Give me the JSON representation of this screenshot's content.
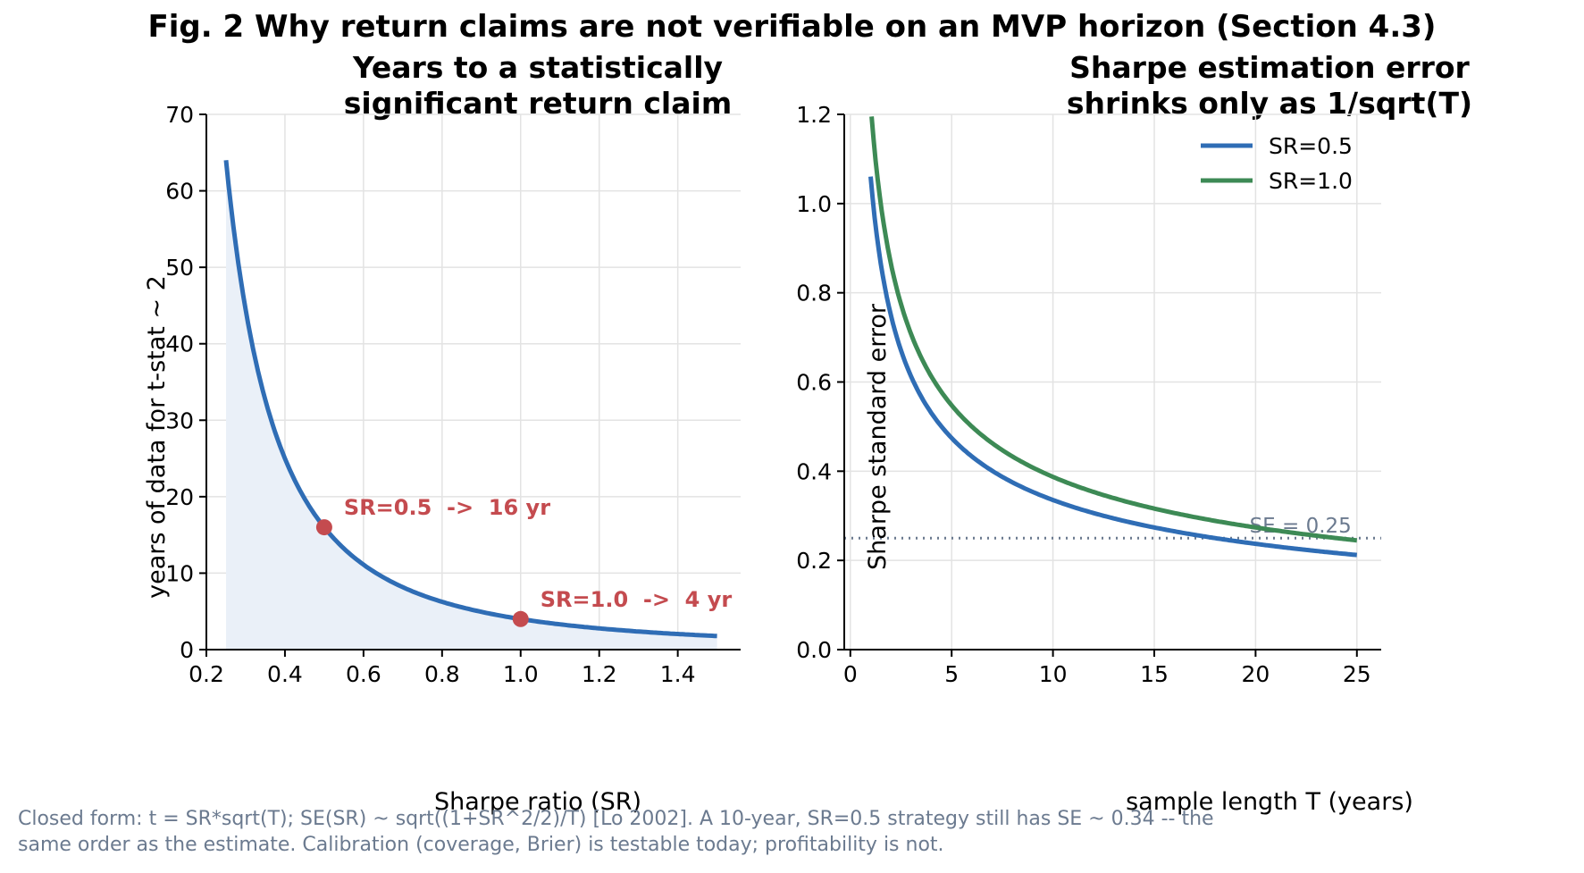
{
  "figure": {
    "suptitle": "Fig. 2  Why return claims are not verifiable on an MVP horizon (Section 4.3)",
    "caption": "Closed form: t = SR*sqrt(T); SE(SR) ~ sqrt((1+SR^2/2)/T) [Lo 2002]. A 10-year, SR=0.5 strategy still has SE ~ 0.34 -- the\nsame order as the estimate. Calibration (coverage, Brier) is testable today; profitability is not."
  },
  "colors": {
    "blue": "#2f6db5",
    "green": "#3d8a55",
    "red": "#c44b4f",
    "fill": "#eaf0f8",
    "grid": "#e3e3e3",
    "ref_line": "#6b7a8f"
  },
  "chart_data": [
    {
      "type": "area",
      "title": "Years to a statistically\nsignificant return claim",
      "xlabel": "Sharpe ratio (SR)",
      "ylabel": "years of data for t-stat ~ 2",
      "xlim": [
        0.2,
        1.56
      ],
      "ylim": [
        0,
        70
      ],
      "xticks": [
        0.2,
        0.4,
        0.6,
        0.8,
        1.0,
        1.2,
        1.4
      ],
      "xtick_labels": [
        "0.2",
        "0.4",
        "0.6",
        "0.8",
        "1.0",
        "1.2",
        "1.4"
      ],
      "yticks": [
        0,
        10,
        20,
        30,
        40,
        50,
        60,
        70
      ],
      "ytick_labels": [
        "0",
        "10",
        "20",
        "30",
        "40",
        "50",
        "60",
        "70"
      ],
      "grid": true,
      "series": [
        {
          "x": [
            0.25,
            0.3,
            0.35,
            0.4,
            0.45,
            0.5,
            0.6,
            0.7,
            0.8,
            0.9,
            1.0,
            1.1,
            1.2,
            1.3,
            1.4,
            1.5
          ],
          "y": [
            64,
            44.4,
            32.7,
            25,
            19.8,
            16,
            11.1,
            8.2,
            6.25,
            4.9,
            4,
            3.3,
            2.8,
            2.4,
            2.0,
            1.8
          ],
          "color": "blue",
          "filled": true
        }
      ],
      "points": [
        {
          "x": 0.5,
          "y": 16,
          "label": "SR=0.5  ->  16 yr"
        },
        {
          "x": 1.0,
          "y": 4,
          "label": "SR=1.0  ->  4 yr"
        }
      ]
    },
    {
      "type": "line",
      "title": "Sharpe estimation error\nshrinks only as 1/sqrt(T)",
      "xlabel": "sample length T (years)",
      "ylabel": "Sharpe standard error",
      "xlim": [
        -0.3,
        26.2
      ],
      "ylim": [
        0,
        1.2
      ],
      "xticks": [
        0,
        5,
        10,
        15,
        20,
        25
      ],
      "xtick_labels": [
        "0",
        "5",
        "10",
        "15",
        "20",
        "25"
      ],
      "yticks": [
        0,
        0.2,
        0.4,
        0.6,
        0.8,
        1.0,
        1.2
      ],
      "ytick_labels": [
        "0.0",
        "0.2",
        "0.4",
        "0.6",
        "0.8",
        "1.0",
        "1.2"
      ],
      "grid": true,
      "legend": "top-right",
      "series": [
        {
          "name": "SR=0.5",
          "color": "blue",
          "x": [
            1,
            1.5,
            2,
            3,
            4,
            5,
            6,
            8,
            10,
            12,
            15,
            18,
            20,
            22,
            25
          ],
          "y": [
            1.061,
            0.866,
            0.75,
            0.612,
            0.53,
            0.474,
            0.433,
            0.375,
            0.335,
            0.306,
            0.274,
            0.25,
            0.237,
            0.226,
            0.212
          ]
        },
        {
          "name": "SR=1.0",
          "color": "green",
          "x": [
            1.05,
            1.5,
            2,
            3,
            4,
            5,
            6,
            8,
            10,
            12,
            15,
            18,
            20,
            22,
            25
          ],
          "y": [
            1.195,
            1.0,
            0.866,
            0.707,
            0.612,
            0.548,
            0.5,
            0.433,
            0.387,
            0.354,
            0.316,
            0.289,
            0.274,
            0.261,
            0.245
          ]
        }
      ],
      "reference_line": {
        "y": 0.25,
        "label": "SE = 0.25",
        "style": "dotted"
      }
    }
  ]
}
